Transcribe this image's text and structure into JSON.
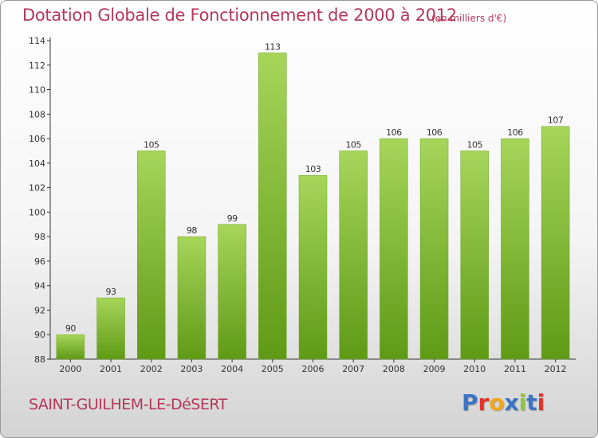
{
  "title": "Dotation Globale de Fonctionnement de 2000 à 2012",
  "unit_note": "(en milliers d'€)",
  "commune": "SAINT-GUILHEM-LE-DéSERT",
  "logo": {
    "text": "Proxiti",
    "colors": [
      "#3c74c4",
      "#e3332b",
      "#f0a81a",
      "#3c74c4",
      "#8dc63f",
      "#3c74c4",
      "#e3332b"
    ]
  },
  "colors": {
    "title": "#b5375a",
    "bar_light": "#a6d55a",
    "bar_dark": "#5f9a16"
  },
  "chart_data": {
    "type": "bar",
    "title": "Dotation Globale de Fonctionnement de 2000 à 2012",
    "categories": [
      "2000",
      "2001",
      "2002",
      "2003",
      "2004",
      "2005",
      "2006",
      "2007",
      "2008",
      "2009",
      "2010",
      "2011",
      "2012"
    ],
    "values": [
      90,
      93,
      105,
      98,
      99,
      113,
      103,
      105,
      106,
      106,
      105,
      106,
      107
    ],
    "ylim": [
      88,
      114
    ],
    "yticks": [
      88,
      90,
      92,
      94,
      96,
      98,
      100,
      102,
      104,
      106,
      108,
      110,
      112,
      114
    ],
    "grid": false,
    "legend": "none"
  }
}
